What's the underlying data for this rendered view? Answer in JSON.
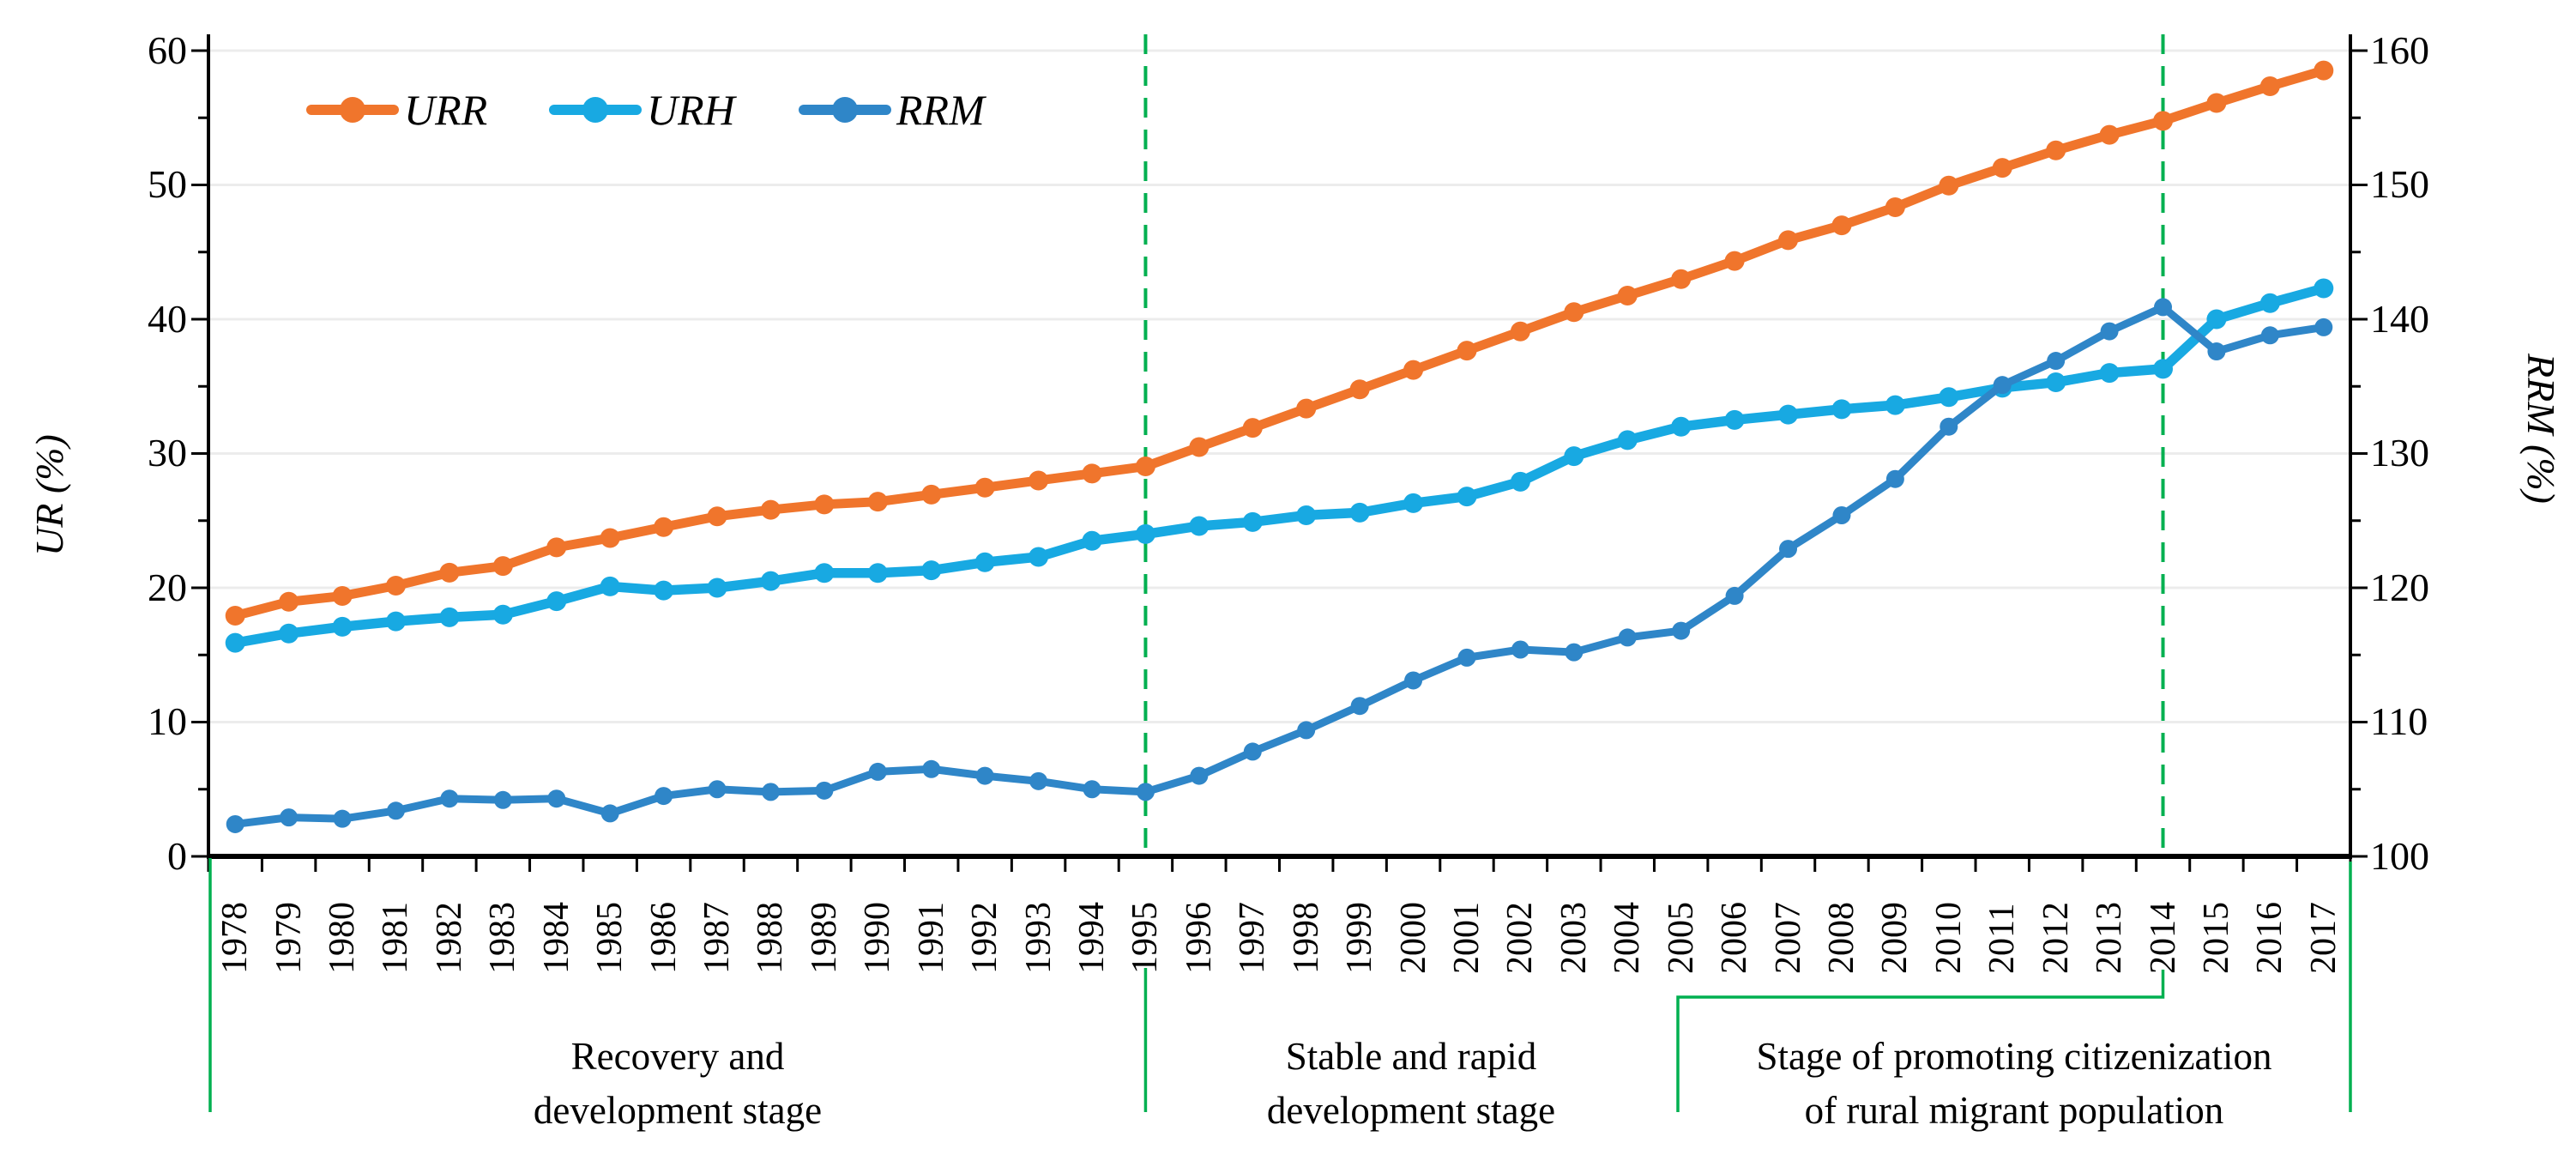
{
  "figure": {
    "background": "#ffffff",
    "grid_color": "#ececec",
    "axis_color": "#000000",
    "divider_color": "#00b050",
    "left_axis": {
      "title": "UR (%)",
      "tick_labels": [
        "0",
        "10",
        "20",
        "30",
        "40",
        "50",
        "60"
      ]
    },
    "right_axis": {
      "title": "RRM (%)",
      "tick_labels": [
        "100",
        "110",
        "120",
        "130",
        "140",
        "150",
        "160"
      ]
    },
    "legend": [
      {
        "label": "URR",
        "color": "#f0752c"
      },
      {
        "label": "URH",
        "color": "#18a9e2"
      },
      {
        "label": "RRM",
        "color": "#2f86c8"
      }
    ],
    "stages": [
      {
        "line1": "Recovery and",
        "line2": "development stage"
      },
      {
        "line1": "Stable and rapid",
        "line2": "development stage"
      },
      {
        "line1": "Stage of promoting citizenization",
        "line2": "of rural migrant population"
      }
    ]
  },
  "chart_data": {
    "type": "line",
    "title": "",
    "xlabel": "",
    "ylabel_left": "UR (%)",
    "ylabel_right": "RRM (%)",
    "x": [
      1978,
      1979,
      1980,
      1981,
      1982,
      1983,
      1984,
      1985,
      1986,
      1987,
      1988,
      1989,
      1990,
      1991,
      1992,
      1993,
      1994,
      1995,
      1996,
      1997,
      1998,
      1999,
      2000,
      2001,
      2002,
      2003,
      2004,
      2005,
      2006,
      2007,
      2008,
      2009,
      2010,
      2011,
      2012,
      2013,
      2014,
      2015,
      2016,
      2017
    ],
    "left_axis_range": [
      0,
      60
    ],
    "left_axis_major_step": 10,
    "left_axis_minor_step": 5,
    "right_axis_range": [
      100,
      160
    ],
    "right_axis_major_step": 10,
    "right_axis_minor_step": 5,
    "grid": "horizontal-major",
    "legend_position": "top-inside",
    "series": [
      {
        "name": "URR",
        "axis": "left",
        "color": "#f0752c",
        "line_width": 11,
        "marker_radius": 11.5,
        "values": [
          17.92,
          18.96,
          19.39,
          20.16,
          21.13,
          21.62,
          23.01,
          23.71,
          24.52,
          25.32,
          25.81,
          26.21,
          26.41,
          26.94,
          27.46,
          27.99,
          28.51,
          29.04,
          30.48,
          31.91,
          33.35,
          34.78,
          36.22,
          37.66,
          39.09,
          40.53,
          41.76,
          42.99,
          44.34,
          45.89,
          46.99,
          48.34,
          49.95,
          51.27,
          52.57,
          53.73,
          54.77,
          56.1,
          57.35,
          58.52
        ]
      },
      {
        "name": "URH",
        "axis": "left",
        "color": "#18a9e2",
        "line_width": 11.5,
        "marker_radius": 11.5,
        "values": [
          15.9,
          16.6,
          17.1,
          17.5,
          17.8,
          18.0,
          19.0,
          20.1,
          19.8,
          20.0,
          20.5,
          21.1,
          21.1,
          21.3,
          21.9,
          22.3,
          23.5,
          24.0,
          24.6,
          24.9,
          25.4,
          25.6,
          26.3,
          26.8,
          27.9,
          29.8,
          31.0,
          32.0,
          32.5,
          32.9,
          33.3,
          33.6,
          34.2,
          34.9,
          35.3,
          36.0,
          36.3,
          40.0,
          41.2,
          42.3
        ]
      },
      {
        "name": "RRM",
        "axis": "right",
        "color": "#2f86c8",
        "line_width": 9,
        "marker_radius": 10.5,
        "values": [
          102.4,
          102.9,
          102.8,
          103.4,
          104.3,
          104.2,
          104.3,
          103.2,
          104.5,
          105.0,
          104.8,
          104.9,
          106.3,
          106.5,
          106.0,
          105.6,
          105.0,
          104.8,
          106.0,
          107.8,
          109.4,
          111.2,
          113.1,
          114.8,
          115.4,
          115.2,
          116.3,
          116.8,
          119.4,
          122.9,
          125.4,
          128.1,
          132.0,
          135.1,
          136.9,
          139.1,
          140.9,
          137.6,
          138.8,
          139.4
        ]
      }
    ],
    "dashed_vlines_years": [
      1995,
      2014
    ]
  }
}
